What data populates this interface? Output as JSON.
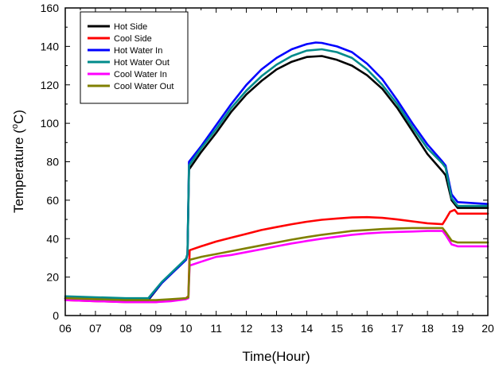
{
  "chart_data": {
    "type": "line",
    "xlabel": "Time(Hour)",
    "ylabel": {
      "base": "Temperature (",
      "sup": "o",
      "unit": "C)"
    },
    "xlim": [
      6,
      20
    ],
    "ylim": [
      0,
      160
    ],
    "x_ticks": [
      6,
      7,
      8,
      9,
      10,
      11,
      12,
      13,
      14,
      15,
      16,
      17,
      18,
      19,
      20
    ],
    "x_tick_labels": [
      "06",
      "07",
      "08",
      "09",
      "10",
      "11",
      "12",
      "13",
      "14",
      "15",
      "16",
      "17",
      "18",
      "19",
      "20"
    ],
    "y_ticks": [
      0,
      20,
      40,
      60,
      80,
      100,
      120,
      140,
      160
    ],
    "y_tick_labels": [
      "0",
      "20",
      "40",
      "60",
      "80",
      "100",
      "120",
      "140",
      "160"
    ],
    "grid": false,
    "legend_position": "top-left",
    "series": [
      {
        "name": "Hot Side",
        "color": "#000000",
        "points": [
          [
            6,
            9
          ],
          [
            7,
            8.5
          ],
          [
            8,
            8
          ],
          [
            8.75,
            8
          ],
          [
            9.2,
            17
          ],
          [
            9.6,
            23
          ],
          [
            10.0,
            29
          ],
          [
            10.05,
            32
          ],
          [
            10.1,
            76
          ],
          [
            10.5,
            85
          ],
          [
            11,
            95
          ],
          [
            11.5,
            106
          ],
          [
            12,
            115
          ],
          [
            12.5,
            122
          ],
          [
            13,
            128
          ],
          [
            13.5,
            132
          ],
          [
            14,
            134.5
          ],
          [
            14.5,
            135
          ],
          [
            15,
            133
          ],
          [
            15.5,
            130
          ],
          [
            16,
            125
          ],
          [
            16.5,
            118
          ],
          [
            17,
            108
          ],
          [
            17.5,
            96
          ],
          [
            18,
            84
          ],
          [
            18.5,
            75
          ],
          [
            18.6,
            73
          ],
          [
            18.8,
            60
          ],
          [
            19,
            56
          ],
          [
            20,
            56
          ]
        ]
      },
      {
        "name": "Cool Side",
        "color": "#ff0000",
        "points": [
          [
            6,
            8
          ],
          [
            7,
            7.5
          ],
          [
            8,
            7
          ],
          [
            9,
            7
          ],
          [
            9.5,
            8
          ],
          [
            10,
            9
          ],
          [
            10.08,
            10
          ],
          [
            10.12,
            34
          ],
          [
            10.5,
            36
          ],
          [
            11,
            38.5
          ],
          [
            11.5,
            40.5
          ],
          [
            12,
            42.5
          ],
          [
            12.5,
            44.5
          ],
          [
            13,
            46
          ],
          [
            13.5,
            47.5
          ],
          [
            14,
            48.8
          ],
          [
            14.5,
            49.8
          ],
          [
            15,
            50.5
          ],
          [
            15.5,
            51
          ],
          [
            16,
            51.2
          ],
          [
            16.5,
            50.8
          ],
          [
            17,
            50
          ],
          [
            17.5,
            49
          ],
          [
            18,
            48
          ],
          [
            18.5,
            47.5
          ],
          [
            18.6,
            50
          ],
          [
            18.75,
            54
          ],
          [
            18.9,
            55
          ],
          [
            19,
            53
          ],
          [
            20,
            53
          ]
        ]
      },
      {
        "name": "Hot Water In",
        "color": "#0000ff",
        "points": [
          [
            6,
            9
          ],
          [
            7,
            9
          ],
          [
            8,
            8.5
          ],
          [
            8.75,
            8.5
          ],
          [
            9.2,
            17
          ],
          [
            9.6,
            23
          ],
          [
            10.0,
            29
          ],
          [
            10.05,
            32
          ],
          [
            10.1,
            80
          ],
          [
            10.5,
            88
          ],
          [
            11,
            99
          ],
          [
            11.5,
            110
          ],
          [
            12,
            120
          ],
          [
            12.5,
            128
          ],
          [
            13,
            134
          ],
          [
            13.5,
            138.5
          ],
          [
            14,
            141.2
          ],
          [
            14.3,
            142
          ],
          [
            14.5,
            141.8
          ],
          [
            15,
            140
          ],
          [
            15.5,
            137
          ],
          [
            16,
            131
          ],
          [
            16.5,
            123
          ],
          [
            17,
            112
          ],
          [
            17.5,
            100
          ],
          [
            18,
            89
          ],
          [
            18.5,
            80
          ],
          [
            18.6,
            78
          ],
          [
            18.8,
            63
          ],
          [
            19,
            59
          ],
          [
            20,
            58
          ]
        ]
      },
      {
        "name": "Hot Water Out",
        "color": "#008b8b",
        "points": [
          [
            6,
            10
          ],
          [
            7,
            9.5
          ],
          [
            8,
            9
          ],
          [
            8.75,
            9
          ],
          [
            9.2,
            17.5
          ],
          [
            9.6,
            23.5
          ],
          [
            10.0,
            29.5
          ],
          [
            10.05,
            32
          ],
          [
            10.1,
            78
          ],
          [
            10.5,
            87
          ],
          [
            11,
            97
          ],
          [
            11.5,
            108
          ],
          [
            12,
            117
          ],
          [
            12.5,
            124.5
          ],
          [
            13,
            130.5
          ],
          [
            13.5,
            135
          ],
          [
            14,
            137.8
          ],
          [
            14.5,
            138.5
          ],
          [
            15,
            137
          ],
          [
            15.5,
            134
          ],
          [
            16,
            128
          ],
          [
            16.5,
            120
          ],
          [
            17,
            110
          ],
          [
            17.5,
            98
          ],
          [
            18,
            87
          ],
          [
            18.5,
            79
          ],
          [
            18.6,
            77
          ],
          [
            18.8,
            61
          ],
          [
            19,
            57
          ],
          [
            20,
            57
          ]
        ]
      },
      {
        "name": "Cool Water In",
        "color": "#ff00ff",
        "points": [
          [
            6,
            8
          ],
          [
            7,
            7.5
          ],
          [
            8,
            7
          ],
          [
            9,
            7
          ],
          [
            9.5,
            7.5
          ],
          [
            10,
            8.5
          ],
          [
            10.08,
            9
          ],
          [
            10.12,
            26
          ],
          [
            10.5,
            28
          ],
          [
            11,
            30.5
          ],
          [
            11.5,
            31.5
          ],
          [
            12,
            33
          ],
          [
            12.5,
            34.5
          ],
          [
            13,
            36
          ],
          [
            13.5,
            37.5
          ],
          [
            14,
            38.8
          ],
          [
            14.5,
            40
          ],
          [
            15,
            41
          ],
          [
            15.5,
            42
          ],
          [
            16,
            42.7
          ],
          [
            16.5,
            43.2
          ],
          [
            17,
            43.5
          ],
          [
            17.5,
            43.7
          ],
          [
            18,
            44
          ],
          [
            18.5,
            44
          ],
          [
            18.6,
            42
          ],
          [
            18.8,
            37
          ],
          [
            19,
            36
          ],
          [
            20,
            36
          ]
        ]
      },
      {
        "name": "Cool Water Out",
        "color": "#808000",
        "points": [
          [
            6,
            9
          ],
          [
            7,
            8.5
          ],
          [
            8,
            8
          ],
          [
            9,
            8
          ],
          [
            9.5,
            8.5
          ],
          [
            10,
            9
          ],
          [
            10.08,
            9.5
          ],
          [
            10.12,
            29
          ],
          [
            10.5,
            30.5
          ],
          [
            11,
            32
          ],
          [
            11.5,
            33.5
          ],
          [
            12,
            35
          ],
          [
            12.5,
            36.5
          ],
          [
            13,
            38
          ],
          [
            13.5,
            39.5
          ],
          [
            14,
            40.8
          ],
          [
            14.5,
            42
          ],
          [
            15,
            43
          ],
          [
            15.5,
            44
          ],
          [
            16,
            44.5
          ],
          [
            16.5,
            45
          ],
          [
            17,
            45.3
          ],
          [
            17.5,
            45.5
          ],
          [
            18,
            45.5
          ],
          [
            18.5,
            45.5
          ],
          [
            18.6,
            43.5
          ],
          [
            18.8,
            39
          ],
          [
            19,
            38
          ],
          [
            20,
            38
          ]
        ]
      }
    ]
  }
}
